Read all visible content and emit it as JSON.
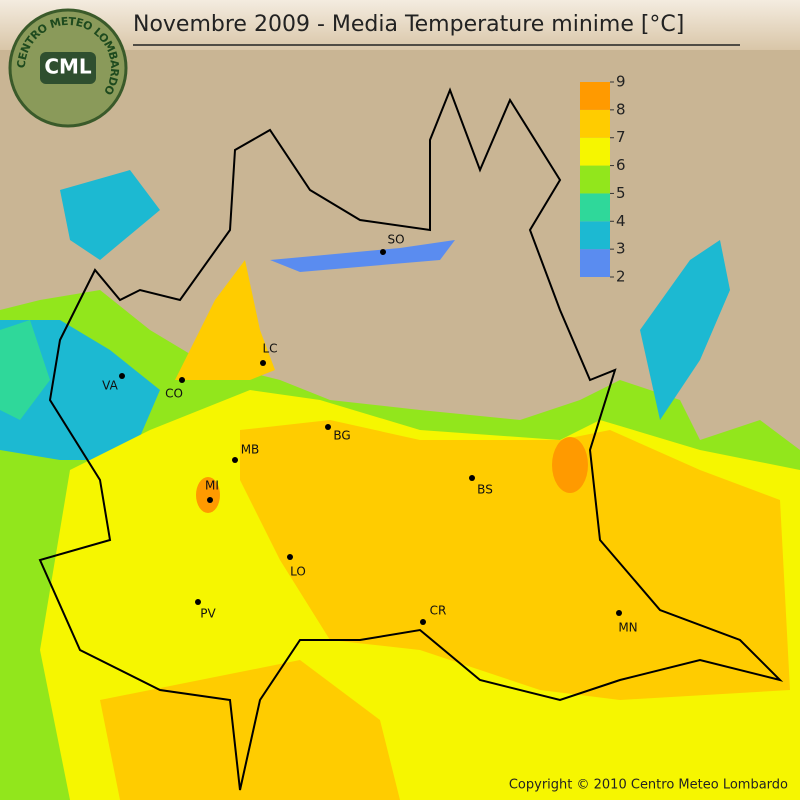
{
  "title": "Novembre 2009 - Media Temperature minime [°C]",
  "logo": {
    "text": "CML",
    "ring": "CENTRO METEO LOMBARDO"
  },
  "legend": {
    "ticks": [
      2,
      3,
      4,
      5,
      6,
      7,
      8,
      9
    ],
    "colors": [
      "#5a8cf0",
      "#1cb9d2",
      "#2fd89a",
      "#92e61c",
      "#f6f600",
      "#ffcc00",
      "#ff9a00"
    ]
  },
  "cities": [
    {
      "label": "SO"
    },
    {
      "label": "LC"
    },
    {
      "label": "CO"
    },
    {
      "label": "VA"
    },
    {
      "label": "BG"
    },
    {
      "label": "MB"
    },
    {
      "label": "MI"
    },
    {
      "label": "BS"
    },
    {
      "label": "LO"
    },
    {
      "label": "PV"
    },
    {
      "label": "CR"
    },
    {
      "label": "MN"
    }
  ],
  "copyright": "Copyright © 2010 Centro Meteo Lombardo"
}
